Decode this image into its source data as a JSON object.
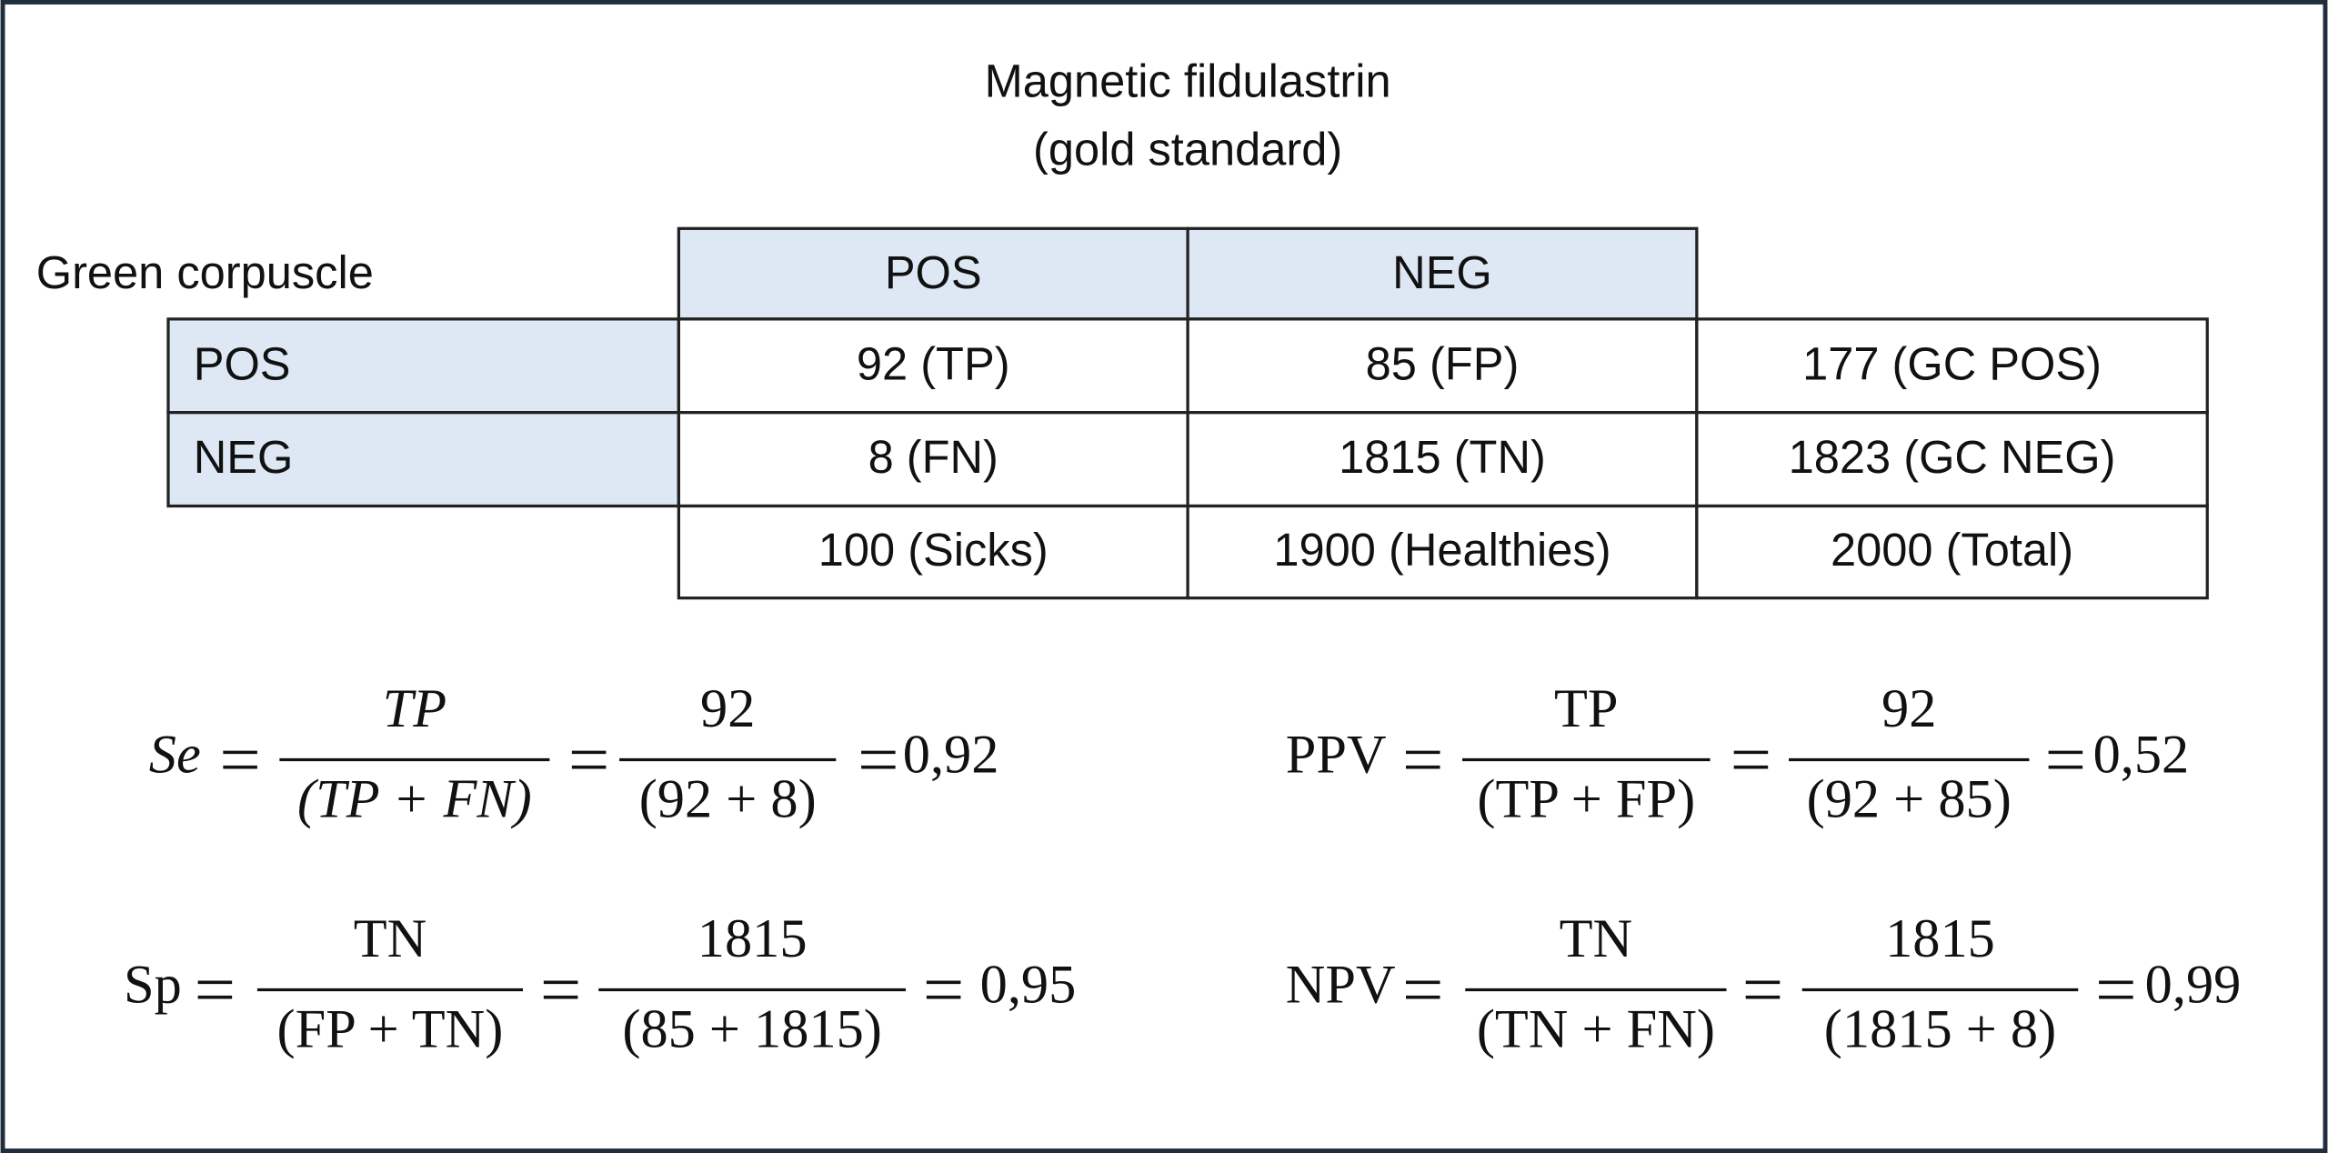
{
  "header": {
    "title_line1": "Magnetic fildulastrin",
    "title_line2": "(gold standard)"
  },
  "table": {
    "row_group_label": "Green corpuscle",
    "column_headers": [
      "POS",
      "NEG"
    ],
    "rows": [
      [
        "POS",
        "92 (TP)",
        "85 (FP)",
        "177 (GC POS)"
      ],
      [
        "NEG",
        "8 (FN)",
        "1815 (TN)",
        "1823 (GC NEG)"
      ]
    ],
    "totals": [
      "100 (Sicks)",
      "1900 (Healthies)",
      "2000 (Total)"
    ]
  },
  "formulas": [
    {
      "name": "Se",
      "numerator": "TP",
      "denominator": "(TP + FN)",
      "value_numerator": "92",
      "value_denominator": "(92 + 8)",
      "result": "0,92"
    },
    {
      "name": "PPV",
      "numerator": "TP",
      "denominator": "(TP + FP)",
      "value_numerator": "92",
      "value_denominator": "(92 + 85)",
      "result": "0,52"
    },
    {
      "name": "Sp",
      "numerator": "TN",
      "denominator": "(FP + TN)",
      "value_numerator": "1815",
      "value_denominator": "(85 + 1815)",
      "result": "0,95"
    },
    {
      "name": "NPV",
      "numerator": "TN",
      "denominator": "(TN + FN)",
      "value_numerator": "1815",
      "value_denominator": "(1815 + 8)",
      "result": "0,99"
    }
  ]
}
